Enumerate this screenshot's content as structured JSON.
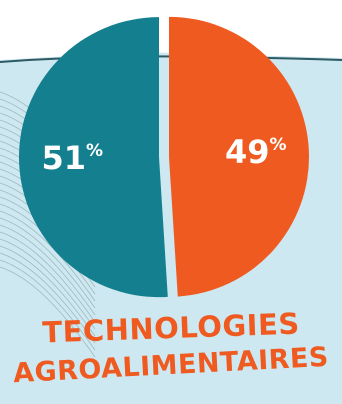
{
  "colors": {
    "background": "#cde8f0",
    "series_a": "#137f8f",
    "series_b": "#ef5a21",
    "caption": "#ef5a21",
    "label_text": "#ffffff"
  },
  "caption": {
    "line1": "TECHNOLOGIES",
    "line2": "AGROALIMENTAIRES"
  },
  "chart_data": {
    "type": "pie",
    "title": "",
    "slices": [
      {
        "label": "49%",
        "value": 49,
        "color": "#ef5a21"
      },
      {
        "label": "51%",
        "value": 51,
        "color": "#137f8f"
      }
    ],
    "legend": "none"
  }
}
